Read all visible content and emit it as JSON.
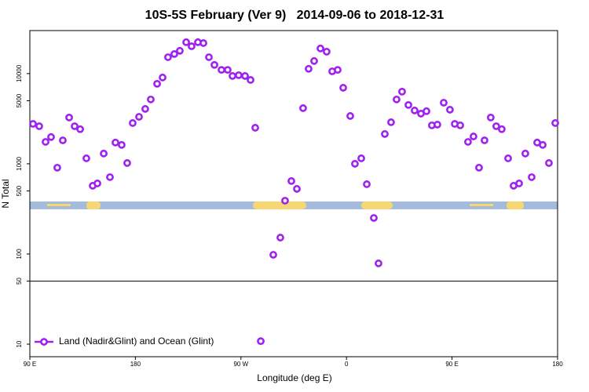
{
  "chart_data": {
    "type": "scatter",
    "title": "10S-5S February (Ver 9)   2014-09-06 to 2018-12-31",
    "x_label": "Longitude (deg E)",
    "y_label": "N Total",
    "log_y": true,
    "legend": "bottom-left",
    "hline": 50,
    "xlim": [
      90,
      540
    ],
    "ylim": [
      7.26,
      30000
    ],
    "xticks": [
      {
        "value": 90,
        "label": "90 E"
      },
      180,
      {
        "value": 270,
        "label": "90 W"
      },
      {
        "value": 360,
        "label": "0"
      },
      {
        "value": 450,
        "label": "90 E"
      },
      {
        "value": 540,
        "label": "180"
      }
    ],
    "yticks": [
      10,
      50,
      100,
      500,
      1000,
      5000,
      10000
    ],
    "series": [
      {
        "name": "Land (Nadir&Glint) and Ocean (Glint)",
        "color": "#a020f0",
        "x": [
          92.7,
          98.0,
          103.4,
          108.1,
          113.4,
          118.1,
          123.5,
          128.2,
          132.9,
          138.2,
          143.6,
          147.6,
          153.0,
          158.3,
          163.0,
          168.3,
          173.0,
          177.7,
          183.1,
          188.4,
          193.1,
          198.5,
          203.2,
          207.8,
          213.2,
          217.9,
          223.3,
          227.9,
          233.3,
          238.0,
          242.7,
          247.4,
          253.4,
          258.7,
          262.8,
          268.1,
          273.5,
          278.2,
          282.2,
          286.9,
          297.6,
          303.6,
          307.6,
          313.0,
          317.7,
          323.0,
          327.7,
          332.4,
          337.8,
          343.1,
          347.8,
          352.5,
          357.2,
          363.2,
          367.2,
          372.6,
          377.3,
          383.3,
          387.3,
          392.7,
          398.0,
          402.7,
          407.4,
          412.8,
          418.1,
          423.5,
          428.2,
          432.8,
          437.5,
          442.9,
          448.2,
          452.3,
          457.0,
          463.6,
          468.3,
          473.0,
          477.7,
          483.0,
          487.7,
          492.4,
          497.8,
          502.5,
          507.2,
          512.5,
          517.9,
          522.6,
          527.3,
          532.6,
          538.0
        ],
        "values": [
          2770,
          2610,
          1750,
          1980,
          906,
          1820,
          3260,
          2610,
          2420,
          1150,
          571,
          606,
          1300,
          711,
          1720,
          1620,
          1020,
          2830,
          3320,
          4060,
          5170,
          7710,
          9060,
          15200,
          16500,
          17900,
          22300,
          20100,
          22300,
          21800,
          15200,
          12500,
          11000,
          11000,
          9410,
          9610,
          9410,
          8510,
          2510,
          10.8,
          98,
          152,
          390,
          644,
          527,
          4140,
          11300,
          13800,
          19000,
          17500,
          10600,
          11000,
          6970,
          3390,
          1000,
          1150,
          594,
          251,
          78.7,
          2140,
          2890,
          5170,
          6310,
          4490,
          3900,
          3600,
          3830,
          2670,
          2720,
          4760,
          3980,
          2770,
          2670,
          1750,
          2010,
          906,
          1820,
          3260,
          2610,
          2420,
          1150,
          571,
          606,
          1300,
          711,
          1720,
          1620,
          1020,
          2830
        ]
      }
    ]
  }
}
